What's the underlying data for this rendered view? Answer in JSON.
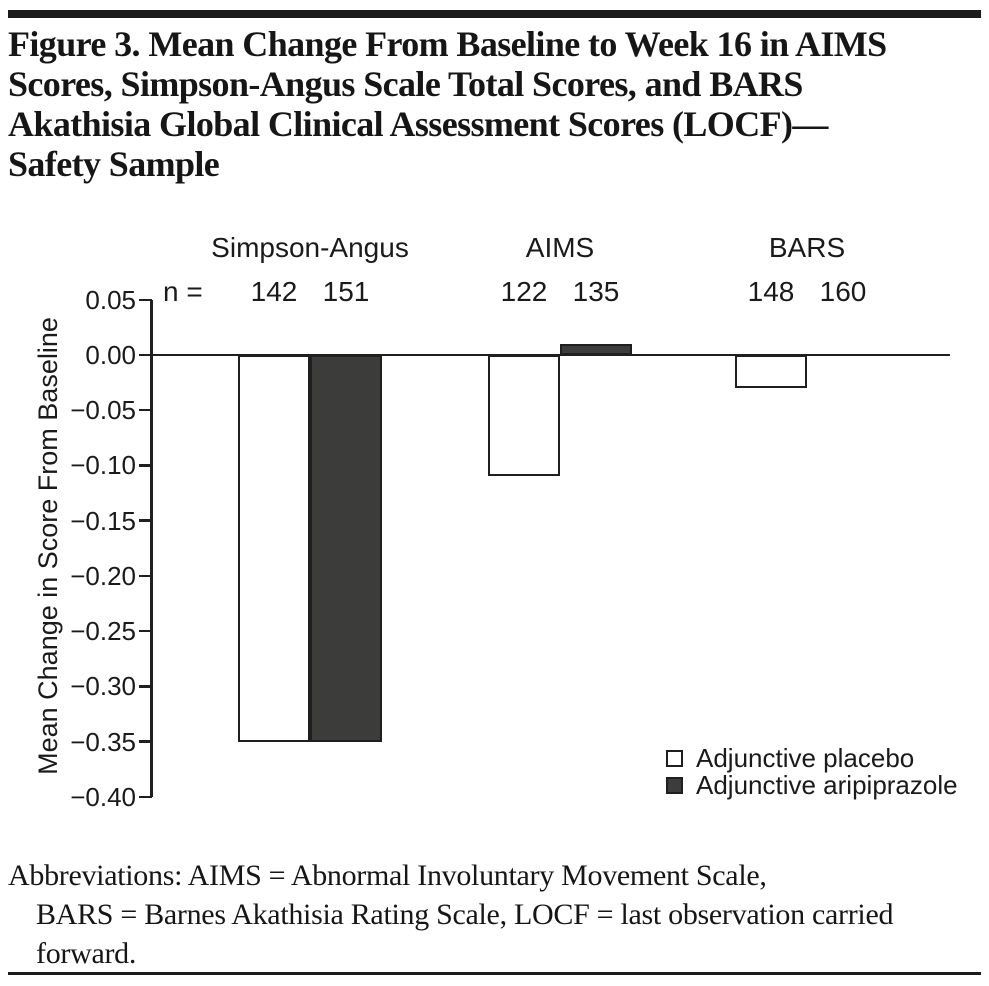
{
  "figure": {
    "title_lines": [
      "Figure 3. Mean Change From Baseline to Week 16 in AIMS",
      "Scores, Simpson-Angus Scale Total Scores, and BARS",
      "Akathisia Global Clinical Assessment Scores (LOCF)—",
      "Safety Sample"
    ],
    "abbreviation_lines": [
      "Abbreviations: AIMS = Abnormal Involuntary Movement Scale,",
      "BARS = Barnes Akathisia Rating Scale, LOCF = last observation carried",
      "forward."
    ]
  },
  "chart_data": {
    "type": "bar",
    "ylabel": "Mean Change in Score From Baseline",
    "ylim": [
      -0.4,
      0.05
    ],
    "ytick_values": [
      0.05,
      0.0,
      -0.05,
      -0.1,
      -0.15,
      -0.2,
      -0.25,
      -0.3,
      -0.35,
      -0.4
    ],
    "ytick_labels": [
      "0.05",
      "0.00",
      "−0.05",
      "−0.10",
      "−0.15",
      "−0.20",
      "−0.25",
      "−0.30",
      "−0.35",
      "−0.40"
    ],
    "grid": false,
    "n_label": "n =",
    "categories": [
      "Simpson-Angus",
      "AIMS",
      "BARS"
    ],
    "groups": [
      {
        "label": "Simpson-Angus",
        "n": [
          "142",
          "151"
        ],
        "values": [
          -0.35,
          -0.35
        ]
      },
      {
        "label": "AIMS",
        "n": [
          "122",
          "135"
        ],
        "values": [
          -0.11,
          0.01
        ]
      },
      {
        "label": "BARS",
        "n": [
          "148",
          "160"
        ],
        "values": [
          -0.03,
          0.0
        ]
      }
    ],
    "series": [
      {
        "name": "Adjunctive placebo",
        "fill": "#ffffff"
      },
      {
        "name": "Adjunctive aripiprazole",
        "fill": "#3c3c3a"
      }
    ],
    "legend_position": "bottom-right",
    "line_color": "#1f1f1f"
  }
}
